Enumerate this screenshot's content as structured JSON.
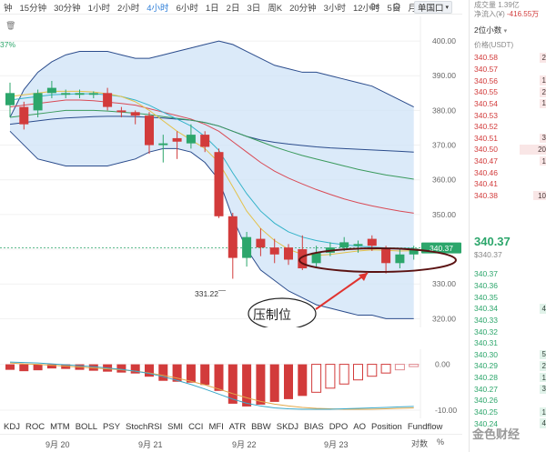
{
  "toolbar": {
    "timeframes": [
      "钟",
      "15分钟",
      "30分钟",
      "1小时",
      "2小时",
      "4小时",
      "6小时",
      "1日",
      "2日",
      "3日",
      "周K",
      "20分钟",
      "3小时",
      "12小时",
      "5日",
      "月K"
    ],
    "active_index": 5,
    "price_mode": "0s",
    "unit_label": "单国口",
    "gear_icon": "gear-icon"
  },
  "chart": {
    "pct_label": "37%",
    "y_ticks": [
      "400.00",
      "390.00",
      "380.00",
      "370.00",
      "360.00",
      "350.00",
      "340.00",
      "330.00",
      "320.00"
    ],
    "y_tick_values": [
      400,
      390,
      380,
      370,
      360,
      350,
      340,
      330,
      320
    ],
    "current_price_tag": "340.37",
    "low_annotation": "331.22",
    "callout_label": "压制位",
    "colors": {
      "up": "#2ca66b",
      "down": "#d23b3b",
      "band_fill": "#cfe3f7",
      "band_line": "#2b4c8c"
    }
  },
  "sub_chart": {
    "y_ticks": [
      "0.00",
      "-10.00"
    ]
  },
  "indicator_tabs": [
    "KDJ",
    "ROC",
    "MTM",
    "BOLL",
    "PSY",
    "StochRSI",
    "SMI",
    "CCI",
    "MFI",
    "ATR",
    "BBW",
    "SKDJ",
    "BIAS",
    "DPO",
    "AO",
    "Position",
    "Fundflow"
  ],
  "date_axis": {
    "labels": [
      "9月 20",
      "9月 21",
      "9月 22",
      "9月 23"
    ],
    "scale_label": "对数",
    "pct_label": "%"
  },
  "book": {
    "header_line1": "成交量 1.39亿",
    "header_line2_label": "净流入(¥)",
    "header_line2_value": "-416.55万",
    "decimals": "2位小数",
    "col_header": "价格(USDT)",
    "asks": [
      {
        "p": "340.58",
        "q": "2"
      },
      {
        "p": "340.57",
        "q": ""
      },
      {
        "p": "340.56",
        "q": "1"
      },
      {
        "p": "340.55",
        "q": "2"
      },
      {
        "p": "340.54",
        "q": "1"
      },
      {
        "p": "340.53",
        "q": ""
      },
      {
        "p": "340.52",
        "q": ""
      },
      {
        "p": "340.51",
        "q": "3"
      },
      {
        "p": "340.50",
        "q": "20"
      },
      {
        "p": "340.47",
        "q": "1"
      },
      {
        "p": "340.46",
        "q": ""
      },
      {
        "p": "340.41",
        "q": ""
      },
      {
        "p": "340.38",
        "q": "10"
      }
    ],
    "last_price": "340.37",
    "last_price_sub": "$340.37",
    "bids": [
      {
        "p": "340.37",
        "q": ""
      },
      {
        "p": "340.36",
        "q": ""
      },
      {
        "p": "340.35",
        "q": ""
      },
      {
        "p": "340.34",
        "q": "4"
      },
      {
        "p": "340.33",
        "q": ""
      },
      {
        "p": "340.32",
        "q": ""
      },
      {
        "p": "340.31",
        "q": ""
      },
      {
        "p": "340.30",
        "q": "5"
      },
      {
        "p": "340.29",
        "q": "2"
      },
      {
        "p": "340.28",
        "q": "1"
      },
      {
        "p": "340.27",
        "q": "3"
      },
      {
        "p": "340.26",
        "q": ""
      },
      {
        "p": "340.25",
        "q": "1"
      },
      {
        "p": "340.24",
        "q": "4"
      }
    ],
    "watermark": "金色财经"
  },
  "chart_data": {
    "type": "candlestick",
    "x": [
      "9月 20",
      "9月 21",
      "9月 22",
      "9月 23"
    ],
    "ylim": [
      318,
      405
    ],
    "candles": [
      {
        "o": 381.5,
        "c": 385.0,
        "h": 388.0,
        "l": 378.0
      },
      {
        "o": 381.0,
        "c": 376.0,
        "h": 382.5,
        "l": 374.5
      },
      {
        "o": 380.0,
        "c": 385.0,
        "h": 386.0,
        "l": 378.0
      },
      {
        "o": 385.0,
        "c": 386.5,
        "h": 388.5,
        "l": 383.5
      },
      {
        "o": 384.5,
        "c": 385.0,
        "h": 386.0,
        "l": 383.5
      },
      {
        "o": 384.5,
        "c": 385.0,
        "h": 386.0,
        "l": 383.5
      },
      {
        "o": 384.5,
        "c": 385.0,
        "h": 385.5,
        "l": 383.5
      },
      {
        "o": 385.0,
        "c": 381.0,
        "h": 386.5,
        "l": 380.0
      },
      {
        "o": 380.0,
        "c": 379.5,
        "h": 381.0,
        "l": 378.0
      },
      {
        "o": 379.5,
        "c": 378.5,
        "h": 380.0,
        "l": 376.0
      },
      {
        "o": 378.5,
        "c": 370.0,
        "h": 379.5,
        "l": 367.5
      },
      {
        "o": 370.0,
        "c": 370.5,
        "h": 373.0,
        "l": 365.0
      },
      {
        "o": 372.0,
        "c": 371.0,
        "h": 374.0,
        "l": 366.0
      },
      {
        "o": 370.5,
        "c": 373.0,
        "h": 376.0,
        "l": 369.0
      },
      {
        "o": 373.0,
        "c": 369.5,
        "h": 374.0,
        "l": 368.0
      },
      {
        "o": 368.0,
        "c": 349.5,
        "h": 369.0,
        "l": 349.0
      },
      {
        "o": 349.5,
        "c": 337.5,
        "h": 350.5,
        "l": 331.5
      },
      {
        "o": 337.5,
        "c": 343.5,
        "h": 345.0,
        "l": 335.0
      },
      {
        "o": 343.0,
        "c": 340.5,
        "h": 346.0,
        "l": 338.0
      },
      {
        "o": 340.5,
        "c": 338.5,
        "h": 343.0,
        "l": 336.0
      },
      {
        "o": 340.5,
        "c": 337.0,
        "h": 341.5,
        "l": 335.5
      },
      {
        "o": 340.0,
        "c": 334.5,
        "h": 344.0,
        "l": 334.0
      },
      {
        "o": 336.0,
        "c": 339.0,
        "h": 341.0,
        "l": 335.0
      },
      {
        "o": 339.0,
        "c": 340.5,
        "h": 342.0,
        "l": 338.0
      },
      {
        "o": 340.5,
        "c": 342.0,
        "h": 343.5,
        "l": 339.5
      },
      {
        "o": 341.0,
        "c": 341.5,
        "h": 342.5,
        "l": 339.0
      },
      {
        "o": 343.0,
        "c": 341.0,
        "h": 344.0,
        "l": 339.5
      },
      {
        "o": 340.0,
        "c": 336.0,
        "h": 341.0,
        "l": 333.0
      },
      {
        "o": 336.0,
        "c": 338.5,
        "h": 340.0,
        "l": 334.5
      },
      {
        "o": 338.5,
        "c": 340.2,
        "h": 341.0,
        "l": 337.0
      }
    ],
    "bands": {
      "upper": [
        378,
        386,
        391,
        394,
        396,
        397,
        397,
        397,
        396,
        395,
        395,
        396,
        397,
        398,
        399,
        400,
        399,
        397,
        395,
        393,
        392,
        391,
        391,
        390,
        389,
        388,
        387,
        385,
        383,
        381
      ],
      "lower": [
        374,
        370,
        366,
        365,
        364,
        364,
        364,
        364,
        365,
        366,
        368,
        369,
        369,
        368,
        365,
        360,
        349,
        340,
        334,
        331,
        328,
        326,
        324,
        323,
        322,
        321,
        321,
        320,
        320,
        320
      ],
      "middle": [
        376,
        376.5,
        377,
        377.5,
        377.8,
        378,
        378.2,
        378.3,
        378.3,
        378.2,
        378,
        377.8,
        377.5,
        377.2,
        376.5,
        375.5,
        374,
        372.5,
        371.5,
        370.8,
        370.3,
        369.9,
        369.5,
        369.2,
        369.0,
        368.8,
        368.6,
        368.4,
        368.2,
        368.0
      ]
    },
    "ma_lines": [
      {
        "color": "#d94a55",
        "values": [
          381,
          381.5,
          382,
          382.5,
          383,
          383,
          382.8,
          382.4,
          382,
          381.5,
          380.5,
          379.5,
          378.5,
          377.5,
          376,
          374,
          371,
          368,
          365,
          362.5,
          360.5,
          358.8,
          357.2,
          355.8,
          354.5,
          353.4,
          352.5,
          351.7,
          351.0,
          350.4
        ]
      },
      {
        "color": "#3a9a5c",
        "values": [
          378,
          378.5,
          379,
          379.5,
          380,
          380,
          380,
          379.8,
          379.5,
          379.2,
          378.8,
          378.2,
          377.7,
          377.2,
          376.5,
          375.5,
          374,
          372.5,
          371,
          369.5,
          368.2,
          367,
          366,
          365,
          364,
          363,
          362.2,
          361.4,
          360.8,
          360.2
        ]
      },
      {
        "color": "#34b3c9",
        "values": [
          383,
          383.5,
          384,
          384.5,
          384.7,
          384.8,
          384.8,
          384.5,
          384,
          383,
          381.5,
          379.5,
          377.5,
          375.5,
          372.5,
          368.5,
          362,
          356,
          351,
          347.5,
          345,
          343.5,
          342.5,
          341.8,
          341.3,
          340.9,
          340.6,
          340.4,
          340.3,
          340.3
        ]
      },
      {
        "color": "#e3c14a",
        "values": [
          384,
          384.5,
          385,
          385.5,
          385.5,
          385.5,
          385.3,
          384.8,
          384,
          382.5,
          380,
          377,
          374,
          371.5,
          369,
          365,
          358,
          351,
          346,
          342.5,
          340,
          338.5,
          338.2,
          338.5,
          339,
          339.5,
          339.8,
          339.7,
          339.5,
          339.6
        ]
      }
    ],
    "volume_hist": [
      -1.2,
      -1.5,
      -1.3,
      -0.9,
      -1.0,
      -1.2,
      -1.4,
      -1.6,
      -1.8,
      -2.0,
      -2.7,
      -3.6,
      -3.8,
      -4.0,
      -4.5,
      -5.8,
      -8.6,
      -9.2,
      -8.8,
      -8.2,
      -7.6,
      -6.9,
      -6.1,
      -5.2,
      -4.3,
      -3.4,
      -2.6,
      -1.9,
      -1.2,
      -0.5
    ],
    "sub_lines": [
      {
        "color": "#e3a84a",
        "values": [
          0.3,
          0.1,
          0.0,
          -0.2,
          -0.4,
          -0.6,
          -0.8,
          -1.0,
          -1.2,
          -1.5,
          -1.9,
          -2.4,
          -3.0,
          -3.7,
          -4.5,
          -5.4,
          -6.4,
          -7.3,
          -8.1,
          -8.7,
          -9.1,
          -9.4,
          -9.6,
          -9.7,
          -9.8,
          -9.8,
          -9.8,
          -9.7,
          -9.6,
          -9.5
        ]
      },
      {
        "color": "#3aa8c9",
        "values": [
          0.5,
          0.4,
          0.3,
          0.1,
          -0.1,
          -0.3,
          -0.5,
          -0.8,
          -1.1,
          -1.5,
          -2.0,
          -2.7,
          -3.5,
          -4.4,
          -5.4,
          -6.5,
          -7.6,
          -8.5,
          -9.1,
          -9.5,
          -9.7,
          -9.8,
          -9.8,
          -9.8,
          -9.7,
          -9.6,
          -9.5,
          -9.4,
          -9.3,
          -9.2
        ]
      }
    ]
  }
}
